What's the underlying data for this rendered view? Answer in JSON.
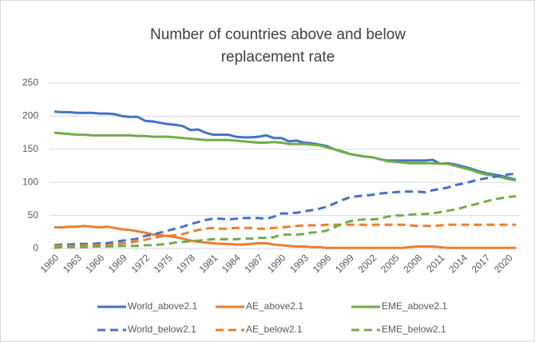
{
  "chart_data": {
    "type": "line",
    "title": [
      "Number of countries above and below",
      "replacement rate"
    ],
    "x": [
      1960,
      1961,
      1962,
      1963,
      1964,
      1965,
      1966,
      1967,
      1968,
      1969,
      1970,
      1971,
      1972,
      1973,
      1974,
      1975,
      1976,
      1977,
      1978,
      1979,
      1980,
      1981,
      1982,
      1983,
      1984,
      1985,
      1986,
      1987,
      1988,
      1989,
      1990,
      1991,
      1992,
      1993,
      1994,
      1995,
      1996,
      1997,
      1998,
      1999,
      2000,
      2001,
      2002,
      2003,
      2004,
      2005,
      2006,
      2007,
      2008,
      2009,
      2010,
      2011,
      2012,
      2013,
      2014,
      2015,
      2016,
      2017,
      2018,
      2019,
      2020,
      2021
    ],
    "xlim": [
      1960,
      2021
    ],
    "xticks": [
      1960,
      1963,
      1966,
      1969,
      1972,
      1975,
      1978,
      1981,
      1984,
      1987,
      1990,
      1993,
      1996,
      1999,
      2002,
      2005,
      2008,
      2011,
      2014,
      2017,
      2020
    ],
    "ylim": [
      0,
      250
    ],
    "yticks": [
      0,
      50,
      100,
      150,
      200,
      250
    ],
    "grid": true,
    "legend": "bottom",
    "series": [
      {
        "name": "World_above2.1",
        "color": "#4472c4",
        "dashed": false,
        "values": [
          207,
          206,
          206,
          205,
          205,
          205,
          204,
          204,
          203,
          200,
          199,
          199,
          193,
          192,
          190,
          188,
          187,
          185,
          179,
          180,
          175,
          172,
          172,
          172,
          169,
          168,
          168,
          169,
          171,
          167,
          167,
          162,
          163,
          160,
          159,
          157,
          155,
          150,
          147,
          143,
          141,
          139,
          138,
          135,
          133,
          133,
          133,
          133,
          133,
          133,
          134,
          128,
          129,
          127,
          124,
          121,
          117,
          114,
          112,
          110,
          107,
          104
        ]
      },
      {
        "name": "AE_above2.1",
        "color": "#ed7d31",
        "dashed": false,
        "values": [
          32,
          32,
          33,
          33,
          34,
          33,
          32,
          33,
          31,
          29,
          28,
          26,
          24,
          21,
          20,
          19,
          17,
          15,
          12,
          10,
          9,
          8,
          7,
          7,
          6,
          6,
          7,
          8,
          8,
          6,
          5,
          4,
          3,
          3,
          2,
          2,
          1,
          1,
          1,
          1,
          1,
          1,
          1,
          1,
          1,
          1,
          1,
          2,
          3,
          3,
          3,
          2,
          1,
          1,
          1,
          1,
          1,
          1,
          1,
          1,
          1,
          1
        ]
      },
      {
        "name": "EME_above2.1",
        "color": "#70ad47",
        "dashed": false,
        "values": [
          175,
          174,
          173,
          172,
          172,
          171,
          171,
          171,
          171,
          171,
          171,
          170,
          170,
          169,
          169,
          169,
          168,
          167,
          166,
          165,
          164,
          164,
          164,
          164,
          163,
          162,
          161,
          160,
          160,
          161,
          160,
          158,
          158,
          158,
          157,
          156,
          153,
          150,
          146,
          143,
          141,
          139,
          138,
          135,
          132,
          131,
          130,
          129,
          129,
          129,
          129,
          128,
          128,
          125,
          122,
          119,
          115,
          112,
          110,
          108,
          105,
          103
        ]
      },
      {
        "name": "World_below2.1",
        "color": "#4472c4",
        "dashed": true,
        "values": [
          5,
          6,
          6,
          7,
          7,
          7,
          8,
          8,
          10,
          12,
          13,
          15,
          19,
          21,
          24,
          27,
          30,
          33,
          37,
          40,
          43,
          45,
          45,
          44,
          45,
          46,
          46,
          46,
          45,
          48,
          53,
          53,
          54,
          56,
          58,
          60,
          63,
          68,
          73,
          77,
          79,
          80,
          81,
          83,
          84,
          85,
          86,
          86,
          86,
          85,
          88,
          90,
          92,
          96,
          98,
          101,
          104,
          106,
          108,
          110,
          112,
          113
        ]
      },
      {
        "name": "AE_below2.1",
        "color": "#ed7d31",
        "dashed": true,
        "values": [
          4,
          4,
          4,
          4,
          5,
          5,
          5,
          5,
          6,
          8,
          9,
          11,
          13,
          16,
          18,
          19,
          20,
          22,
          25,
          28,
          30,
          31,
          30,
          30,
          31,
          31,
          31,
          30,
          30,
          31,
          32,
          33,
          34,
          35,
          35,
          35,
          36,
          36,
          36,
          36,
          36,
          36,
          36,
          36,
          36,
          36,
          36,
          35,
          34,
          34,
          34,
          35,
          36,
          36,
          36,
          36,
          36,
          36,
          36,
          36,
          36,
          36
        ]
      },
      {
        "name": "EME_below2.1",
        "color": "#70ad47",
        "dashed": true,
        "values": [
          1,
          2,
          2,
          2,
          2,
          3,
          3,
          3,
          3,
          4,
          4,
          4,
          5,
          5,
          6,
          7,
          9,
          10,
          11,
          12,
          13,
          14,
          14,
          14,
          14,
          15,
          15,
          16,
          16,
          17,
          21,
          21,
          21,
          22,
          24,
          25,
          27,
          32,
          37,
          41,
          43,
          44,
          44,
          45,
          48,
          50,
          50,
          51,
          52,
          52,
          53,
          55,
          57,
          59,
          62,
          65,
          68,
          71,
          74,
          76,
          78,
          79
        ]
      }
    ]
  }
}
